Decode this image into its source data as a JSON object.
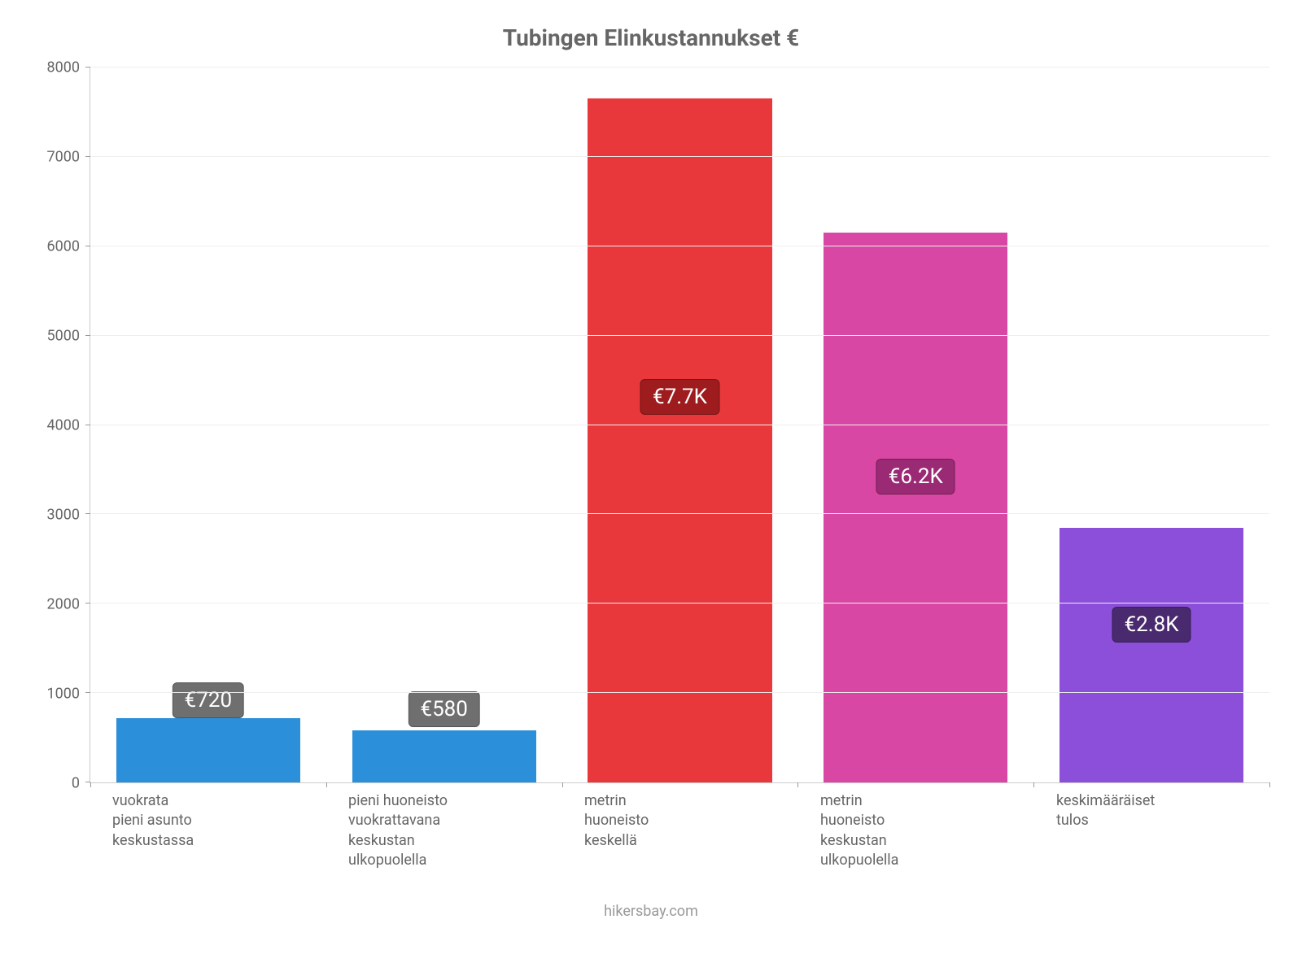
{
  "chart": {
    "type": "bar",
    "title": "Tubingen Elinkustannukset €",
    "title_color": "#666666",
    "title_fontsize": 28,
    "background_color": "#ffffff",
    "axis_color": "#cccccc",
    "grid_color": "#eeeeee",
    "label_color": "#666666",
    "label_fontsize": 18,
    "value_badge_fontsize": 26,
    "bar_width_pct": 78,
    "ylim": [
      0,
      8000
    ],
    "ytick_step": 1000,
    "yticks": [
      0,
      1000,
      2000,
      3000,
      4000,
      5000,
      6000,
      7000,
      8000
    ],
    "categories": [
      "vuokrata\npieni asunto\nkeskustassa",
      "pieni huoneisto\nvuokrattavana\nkeskustan\nulkopuolella",
      "metrin\nhuoneisto\nkeskellä",
      "metrin\nhuoneisto\nkeskustan\nulkopuolella",
      "keskimääräiset\ntulos"
    ],
    "values": [
      720,
      580,
      7650,
      6150,
      2850
    ],
    "value_labels": [
      "€720",
      "€580",
      "€7.7K",
      "€6.2K",
      "€2.8K"
    ],
    "bar_colors": [
      "#2b90d9",
      "#2b90d9",
      "#e8383b",
      "#d847a3",
      "#8c4fd9"
    ],
    "badge_colors": [
      "#6f6f6f",
      "#6f6f6f",
      "#9e1c1e",
      "#9a2a74",
      "#4a2a6f"
    ],
    "badge_positions_value": [
      900,
      800,
      4300,
      3400,
      1750
    ],
    "attribution": "hikersbay.com"
  }
}
